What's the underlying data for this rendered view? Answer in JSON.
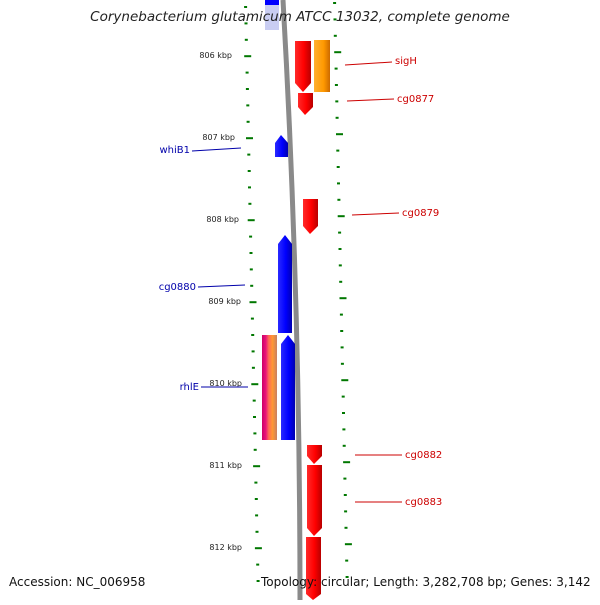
{
  "title": "Corynebacterium glutamicum ATCC 13032, complete genome",
  "footer": {
    "accession": "Accession: NC_006958",
    "topology": "Topology: circular; Length: 3,282,708 bp; Genes: 3,142"
  },
  "colors": {
    "backbone": "#8a8a8a",
    "forward_gene": "#ff0000",
    "reverse_gene": "#0000ff",
    "forward_label": "#cc0000",
    "reverse_label": "#0000aa",
    "tick": "#007700",
    "orange_feature": "#ff9900",
    "magenta_feature": "#dd1177"
  },
  "scale_labels": [
    "806 kbp",
    "807 kbp",
    "808 kbp",
    "809 kbp",
    "810 kbp",
    "811 kbp",
    "812 kbp"
  ],
  "gene_labels": {
    "forward": [
      "sigH",
      "cg0877",
      "cg0879",
      "cg0882",
      "cg0883"
    ],
    "reverse": [
      "whiB1",
      "cg0880",
      "rhlE"
    ]
  }
}
